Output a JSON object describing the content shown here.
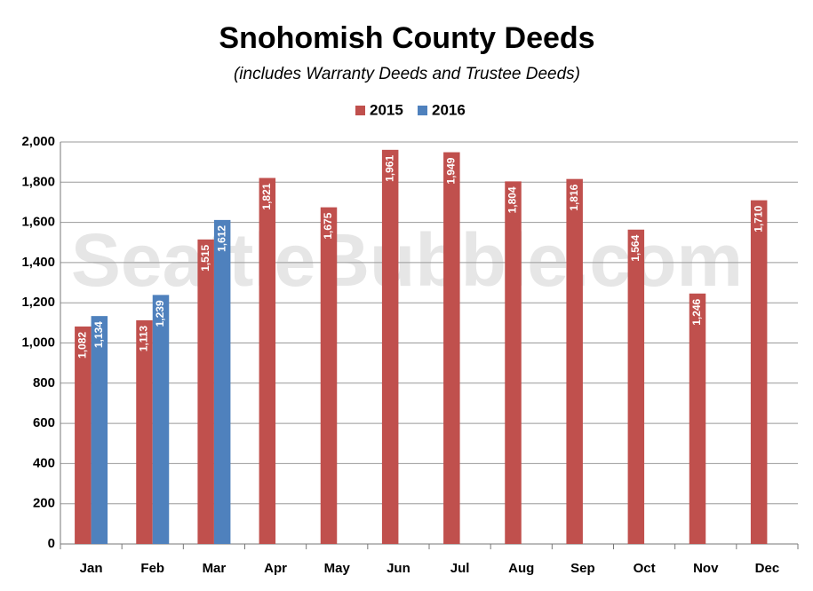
{
  "chart_data": {
    "type": "bar",
    "title": "Snohomish County Deeds",
    "subtitle": "(includes Warranty Deeds and Trustee Deeds)",
    "watermark": "SeattleBubble.com",
    "categories": [
      "Jan",
      "Feb",
      "Mar",
      "Apr",
      "May",
      "Jun",
      "Jul",
      "Aug",
      "Sep",
      "Oct",
      "Nov",
      "Dec"
    ],
    "series": [
      {
        "name": "2015",
        "color": "#c0504d",
        "values": [
          1082,
          1113,
          1515,
          1821,
          1675,
          1961,
          1949,
          1804,
          1816,
          1564,
          1246,
          1710
        ],
        "value_labels": [
          "1,082",
          "1,113",
          "1,515",
          "1,821",
          "1,675",
          "1,961",
          "1,949",
          "1,804",
          "1,816",
          "1,564",
          "1,246",
          "1,710"
        ]
      },
      {
        "name": "2016",
        "color": "#4f81bd",
        "values": [
          1134,
          1239,
          1612,
          null,
          null,
          null,
          null,
          null,
          null,
          null,
          null,
          null
        ],
        "value_labels": [
          "1,134",
          "1,239",
          "1,612",
          null,
          null,
          null,
          null,
          null,
          null,
          null,
          null,
          null
        ]
      }
    ],
    "ylim": [
      0,
      2000
    ],
    "yticks": [
      0,
      200,
      400,
      600,
      800,
      {
        "value": 1000,
        "label": "1,000"
      },
      {
        "value": 1200,
        "label": "1,200"
      },
      {
        "value": 1400,
        "label": "1,400"
      },
      {
        "value": 1600,
        "label": "1,600"
      },
      {
        "value": 1800,
        "label": "1,800"
      },
      {
        "value": 2000,
        "label": "2,000"
      }
    ],
    "grid": true,
    "legend": "top"
  }
}
